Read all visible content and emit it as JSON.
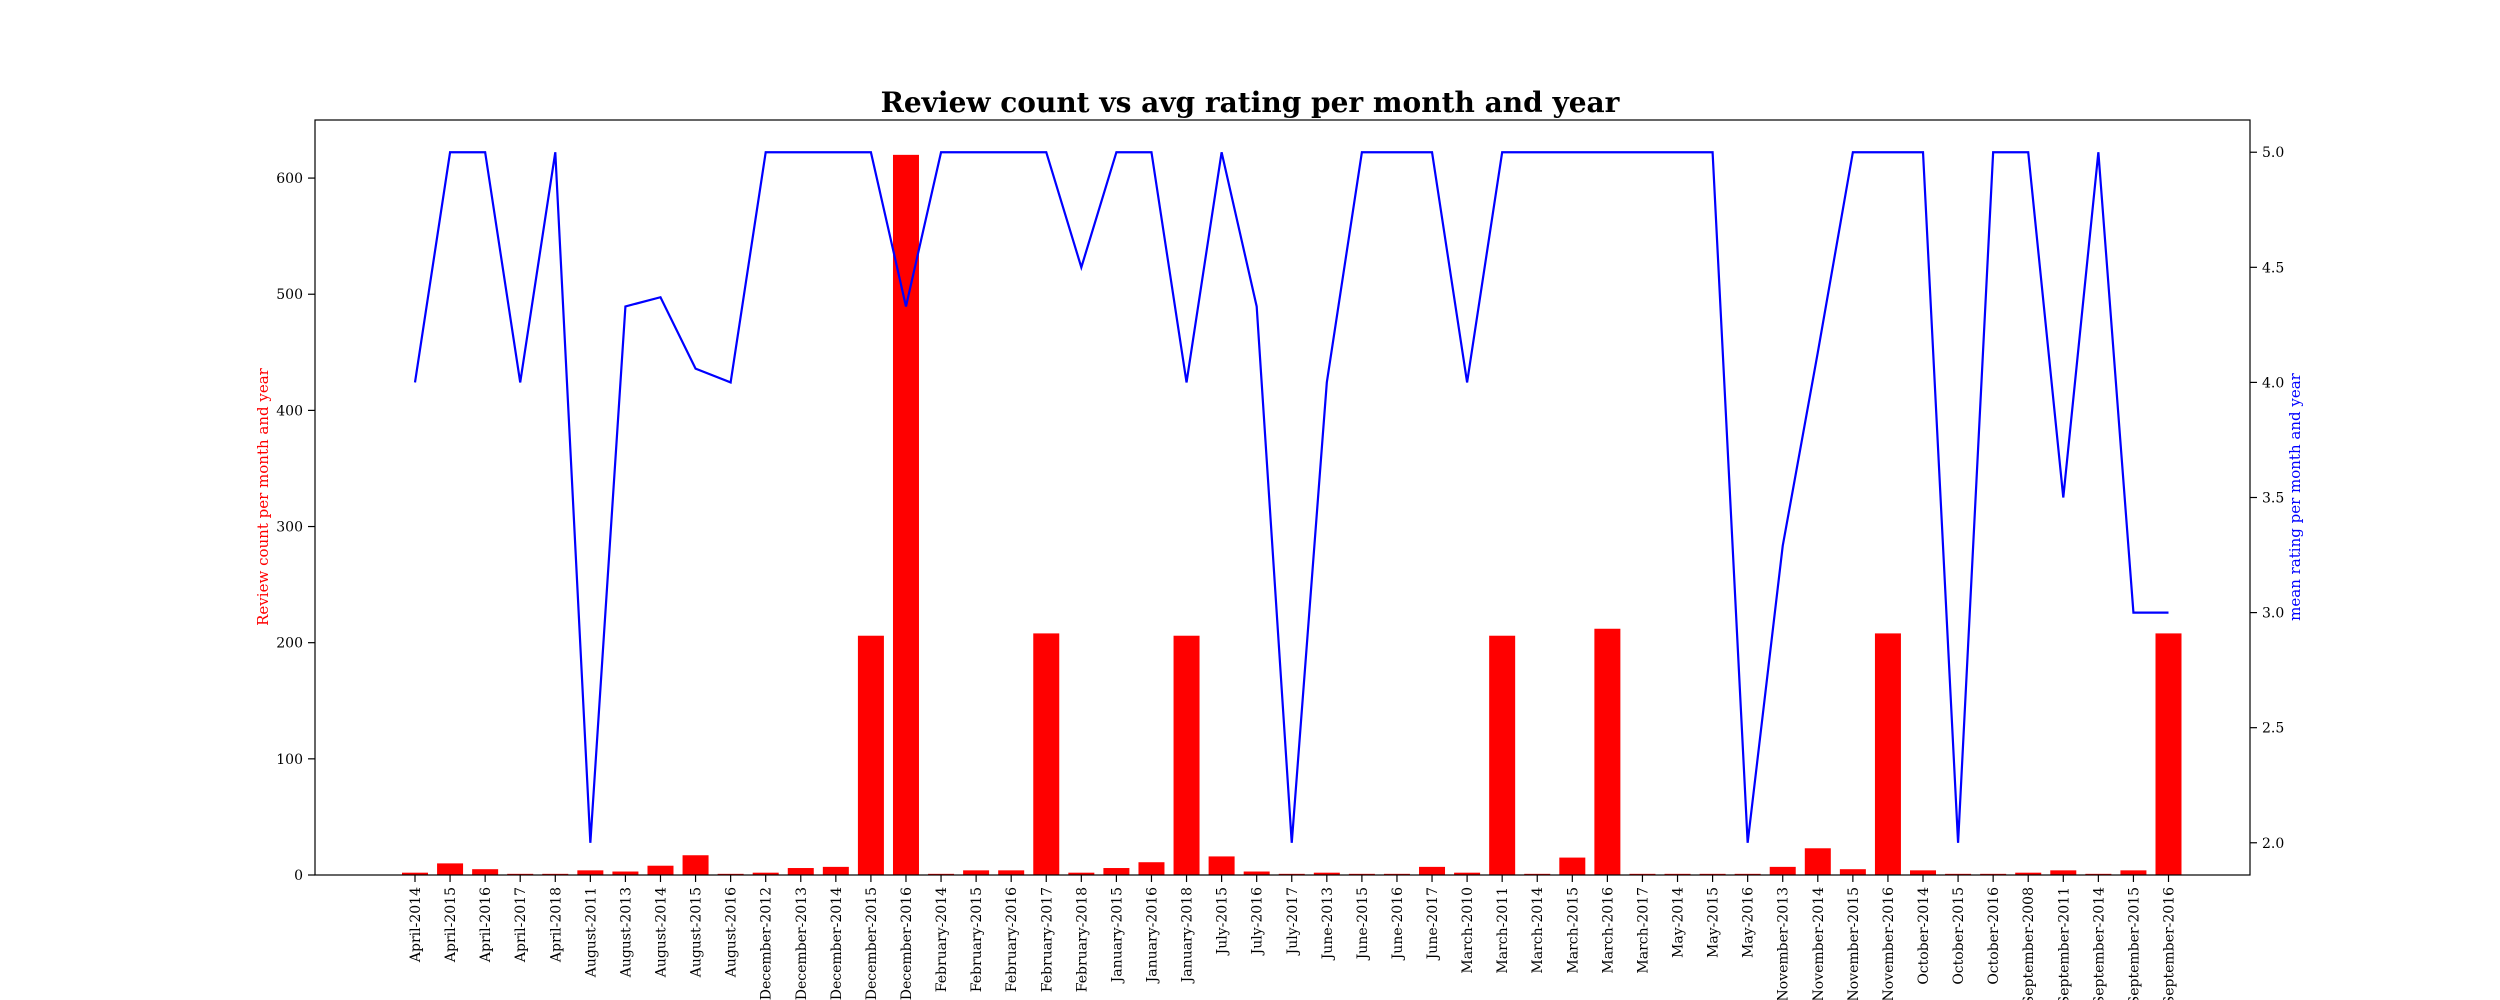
{
  "chart_data": {
    "type": "bar",
    "title": "Review count vs avg rating per month and year",
    "xlabel": "",
    "ylabel": "Review count per month and year",
    "y2label": "mean rating per month and year",
    "ylim": [
      0,
      650
    ],
    "y2lim": [
      1.86,
      5.14
    ],
    "yticks": [
      0,
      100,
      200,
      300,
      400,
      500,
      600
    ],
    "y2ticks": [
      2.0,
      2.5,
      3.0,
      3.5,
      4.0,
      4.5,
      5.0
    ],
    "y2tick_labels": [
      "2.0",
      "2.5",
      "3.0",
      "3.5",
      "4.0",
      "4.5",
      "5.0"
    ],
    "grid": false,
    "colors": {
      "bars": "#ff0000",
      "line": "#0000ff",
      "ylabel": "#ff0000",
      "y2label": "#0000ff"
    },
    "categories": [
      "April-2014",
      "April-2015",
      "April-2016",
      "April-2017",
      "April-2018",
      "August-2011",
      "August-2013",
      "August-2014",
      "August-2015",
      "August-2016",
      "December-2012",
      "December-2013",
      "December-2014",
      "December-2015",
      "December-2016",
      "February-2014",
      "February-2015",
      "February-2016",
      "February-2017",
      "February-2018",
      "January-2015",
      "January-2016",
      "January-2018",
      "July-2015",
      "July-2016",
      "July-2017",
      "June-2013",
      "June-2015",
      "June-2016",
      "June-2017",
      "March-2010",
      "March-2011",
      "March-2014",
      "March-2015",
      "March-2016",
      "March-2017",
      "May-2014",
      "May-2015",
      "May-2016",
      "November-2013",
      "November-2014",
      "November-2015",
      "November-2016",
      "October-2014",
      "October-2015",
      "October-2016",
      "September-2008",
      "September-2011",
      "September-2014",
      "September-2015",
      "September-2016"
    ],
    "series": [
      {
        "name": "Review count per month and year",
        "type": "bar",
        "axis": "left",
        "values": [
          2,
          10,
          5,
          1,
          1,
          4,
          3,
          8,
          17,
          1,
          2,
          6,
          7,
          206,
          620,
          1,
          4,
          4,
          208,
          2,
          6,
          11,
          206,
          16,
          3,
          1,
          2,
          1,
          1,
          7,
          2,
          206,
          1,
          15,
          212,
          1,
          1,
          1,
          1,
          7,
          23,
          5,
          208,
          4,
          1,
          1,
          2,
          4,
          1,
          4,
          208
        ]
      },
      {
        "name": "mean rating per month and year",
        "type": "line",
        "axis": "right",
        "values": [
          4.0,
          5.0,
          5.0,
          4.0,
          5.0,
          2.0,
          4.33,
          4.37,
          4.06,
          4.0,
          5.0,
          5.0,
          5.0,
          5.0,
          4.33,
          5.0,
          5.0,
          5.0,
          5.0,
          4.5,
          5.0,
          5.0,
          4.0,
          5.0,
          4.33,
          2.0,
          4.0,
          5.0,
          5.0,
          5.0,
          4.0,
          5.0,
          5.0,
          5.0,
          5.0,
          5.0,
          5.0,
          5.0,
          2.0,
          3.29,
          4.13,
          5.0,
          5.0,
          5.0,
          2.0,
          5.0,
          5.0,
          3.5,
          5.0,
          3.0,
          3.0
        ]
      }
    ]
  }
}
